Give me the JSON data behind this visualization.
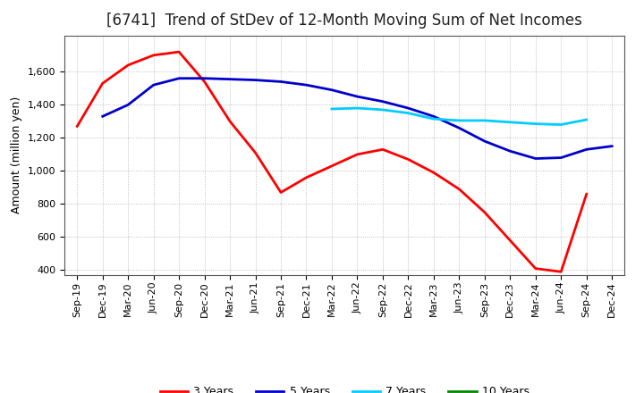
{
  "title": "[6741]  Trend of StDev of 12-Month Moving Sum of Net Incomes",
  "ylabel": "Amount (million yen)",
  "x_labels": [
    "Sep-19",
    "Dec-19",
    "Mar-20",
    "Jun-20",
    "Sep-20",
    "Dec-20",
    "Mar-21",
    "Jun-21",
    "Sep-21",
    "Dec-21",
    "Mar-22",
    "Jun-22",
    "Sep-22",
    "Dec-22",
    "Mar-23",
    "Jun-23",
    "Sep-23",
    "Dec-23",
    "Mar-24",
    "Jun-24",
    "Sep-24",
    "Dec-24"
  ],
  "series": {
    "3 Years": {
      "color": "#ff0000",
      "data_x": [
        0,
        1,
        2,
        3,
        4,
        5,
        6,
        7,
        8,
        9,
        10,
        11,
        12,
        13,
        14,
        15,
        16,
        17,
        18,
        19,
        20
      ],
      "data_y": [
        1270,
        1530,
        1640,
        1700,
        1720,
        1540,
        1300,
        1110,
        870,
        960,
        1030,
        1100,
        1130,
        1070,
        990,
        890,
        750,
        580,
        410,
        390,
        860
      ]
    },
    "5 Years": {
      "color": "#0000cc",
      "data_x": [
        1,
        2,
        3,
        4,
        5,
        6,
        7,
        8,
        9,
        10,
        11,
        12,
        13,
        14,
        15,
        16,
        17,
        18,
        19,
        20,
        21
      ],
      "data_y": [
        1330,
        1400,
        1520,
        1560,
        1560,
        1555,
        1550,
        1540,
        1520,
        1490,
        1450,
        1420,
        1380,
        1330,
        1260,
        1180,
        1120,
        1075,
        1080,
        1130,
        1150
      ]
    },
    "7 Years": {
      "color": "#00ccff",
      "data_x": [
        10,
        11,
        12,
        13,
        14,
        15,
        16,
        17,
        18,
        19,
        20
      ],
      "data_y": [
        1375,
        1380,
        1370,
        1350,
        1315,
        1305,
        1305,
        1295,
        1285,
        1280,
        1310
      ]
    },
    "10 Years": {
      "color": "#008800",
      "data_x": [],
      "data_y": []
    }
  },
  "ylim": [
    370,
    1820
  ],
  "yticks": [
    400,
    600,
    800,
    1000,
    1200,
    1400,
    1600
  ],
  "background_color": "#ffffff",
  "grid_color": "#999999",
  "title_fontsize": 12,
  "axis_fontsize": 9,
  "tick_fontsize": 8,
  "legend_fontsize": 9,
  "linewidth": 2.0
}
